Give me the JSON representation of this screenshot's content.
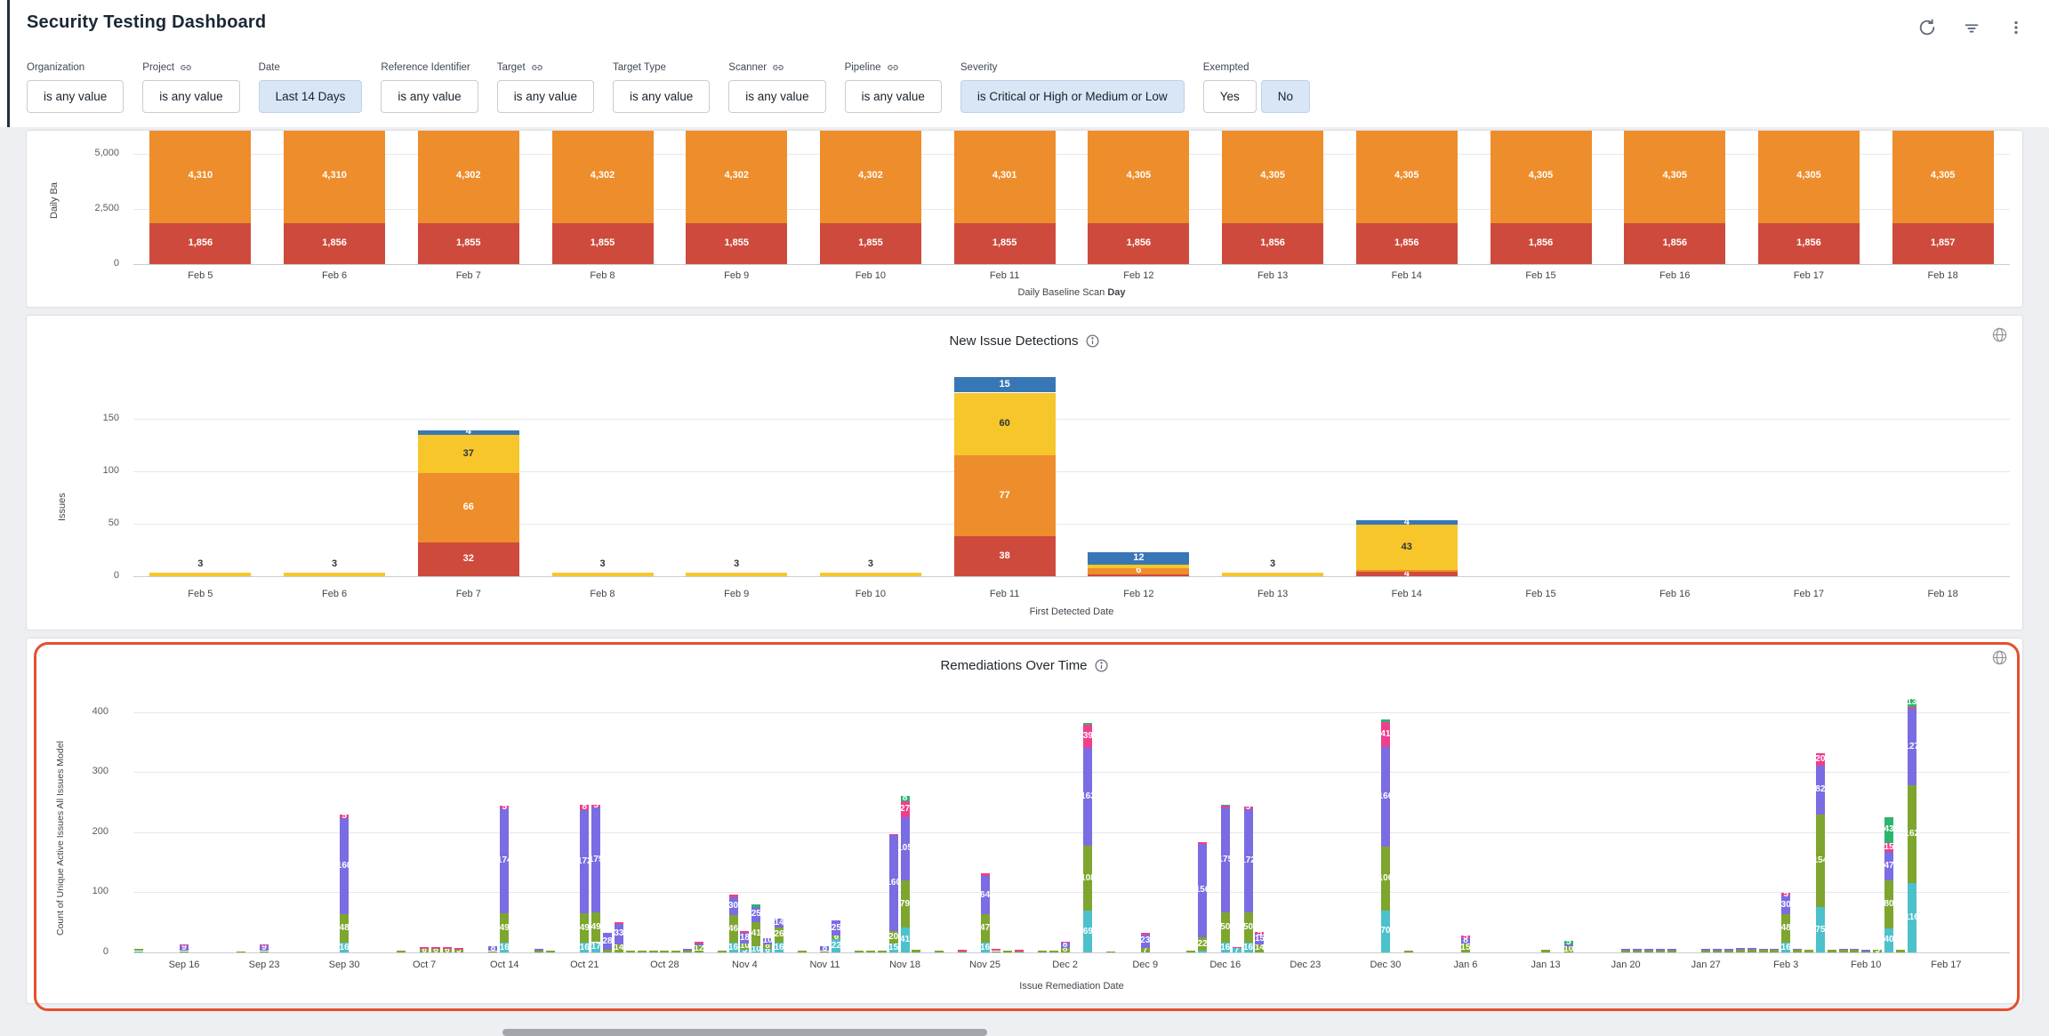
{
  "header": {
    "title": "Security Testing Dashboard",
    "icons": [
      "refresh-icon",
      "filter-icon",
      "kebab-menu-icon"
    ]
  },
  "filters": [
    {
      "label": "Organization",
      "linked": false,
      "chips": [
        {
          "text": "is any value",
          "active": false
        }
      ]
    },
    {
      "label": "Project",
      "linked": true,
      "chips": [
        {
          "text": "is any value",
          "active": false
        }
      ]
    },
    {
      "label": "Date",
      "linked": false,
      "chips": [
        {
          "text": "Last 14 Days",
          "active": true
        }
      ]
    },
    {
      "label": "Reference Identifier",
      "linked": false,
      "chips": [
        {
          "text": "is any value",
          "active": false
        }
      ]
    },
    {
      "label": "Target",
      "linked": true,
      "chips": [
        {
          "text": "is any value",
          "active": false
        }
      ]
    },
    {
      "label": "Target Type",
      "linked": false,
      "chips": [
        {
          "text": "is any value",
          "active": false
        }
      ]
    },
    {
      "label": "Scanner",
      "linked": true,
      "chips": [
        {
          "text": "is any value",
          "active": false
        }
      ]
    },
    {
      "label": "Pipeline",
      "linked": true,
      "chips": [
        {
          "text": "is any value",
          "active": false
        }
      ]
    },
    {
      "label": "Severity",
      "linked": false,
      "chips": [
        {
          "text": "is Critical or High or Medium or Low",
          "active": true
        }
      ]
    },
    {
      "label": "Exempted",
      "linked": false,
      "chips": [
        {
          "text": "Yes",
          "active": false
        },
        {
          "text": "No",
          "active": true
        }
      ]
    }
  ],
  "severity_palette": {
    "critical": "#ce4a3c",
    "high": "#ee8d2b",
    "medium": "#f6c62b",
    "low": "#3877b5"
  },
  "chart_data": [
    {
      "type": "bar",
      "stacked": true,
      "title": "",
      "ylabel": "Daily Ba",
      "yticks": [
        {
          "v": 5000,
          "label": "5,000"
        },
        {
          "v": 2500,
          "label": "2,500"
        },
        {
          "v": 0,
          "label": "0"
        }
      ],
      "xlabel": "Daily Baseline Scan",
      "xlabel_bold": "Day",
      "categories": [
        "Feb 5",
        "Feb 6",
        "Feb 7",
        "Feb 8",
        "Feb 9",
        "Feb 10",
        "Feb 11",
        "Feb 12",
        "Feb 13",
        "Feb 14",
        "Feb 15",
        "Feb 16",
        "Feb 17",
        "Feb 18"
      ],
      "series": [
        {
          "name": "high",
          "color": "#ee8d2b",
          "values": [
            4310,
            4310,
            4302,
            4302,
            4302,
            4302,
            4301,
            4305,
            4305,
            4305,
            4305,
            4305,
            4305,
            4305
          ],
          "labels": [
            "4,310",
            "4,310",
            "4,302",
            "4,302",
            "4,302",
            "4,302",
            "4,301",
            "4,305",
            "4,305",
            "4,305",
            "4,305",
            "4,305",
            "4,305",
            "4,305"
          ]
        },
        {
          "name": "critical",
          "color": "#ce4a3c",
          "values": [
            1856,
            1856,
            1855,
            1855,
            1855,
            1855,
            1855,
            1856,
            1856,
            1856,
            1856,
            1856,
            1856,
            1857
          ],
          "labels": [
            "1,856",
            "1,856",
            "1,855",
            "1,855",
            "1,855",
            "1,855",
            "1,855",
            "1,856",
            "1,856",
            "1,856",
            "1,856",
            "1,856",
            "1,856",
            "1,857"
          ]
        }
      ]
    },
    {
      "type": "bar",
      "stacked": true,
      "title": "New Issue Detections",
      "ylabel": "Issues",
      "xlabel": "First Detected Date",
      "yticks": [
        {
          "v": 0,
          "label": "0"
        },
        {
          "v": 50,
          "label": "50"
        },
        {
          "v": 100,
          "label": "100"
        },
        {
          "v": 150,
          "label": "150"
        }
      ],
      "categories": [
        "Feb 5",
        "Feb 6",
        "Feb 7",
        "Feb 8",
        "Feb 9",
        "Feb 10",
        "Feb 11",
        "Feb 12",
        "Feb 13",
        "Feb 14",
        "Feb 15",
        "Feb 16",
        "Feb 17",
        "Feb 18"
      ],
      "stacks": [
        [
          [
            "medium",
            3
          ]
        ],
        [
          [
            "medium",
            3
          ]
        ],
        [
          [
            "critical",
            32
          ],
          [
            "high",
            66
          ],
          [
            "medium",
            37
          ],
          [
            "low",
            4
          ]
        ],
        [
          [
            "medium",
            3
          ]
        ],
        [
          [
            "medium",
            3
          ]
        ],
        [
          [
            "medium",
            3
          ]
        ],
        [
          [
            "critical",
            38
          ],
          [
            "high",
            77
          ],
          [
            "medium",
            60
          ],
          [
            "low",
            15
          ]
        ],
        [
          [
            "critical",
            2
          ],
          [
            "high",
            6
          ],
          [
            "medium",
            3
          ],
          [
            "low",
            12
          ]
        ],
        [
          [
            "medium",
            3
          ]
        ],
        [
          [
            "critical",
            4
          ],
          [
            "high",
            2
          ],
          [
            "medium",
            43
          ],
          [
            "low",
            4
          ]
        ],
        [],
        [],
        [],
        []
      ]
    },
    {
      "type": "bar",
      "stacked": true,
      "title": "Remediations Over Time",
      "ylabel": "Count of Unique Active Issues All Issues Model",
      "xlabel": "Issue Remediation Date",
      "yticks": [
        {
          "v": 0,
          "label": "0"
        },
        {
          "v": 100,
          "label": "100"
        },
        {
          "v": 200,
          "label": "200"
        },
        {
          "v": 300,
          "label": "300"
        },
        {
          "v": 400,
          "label": "400"
        }
      ],
      "week_ticks": [
        "Sep 16",
        "Sep 23",
        "Sep 30",
        "Oct 7",
        "Oct 14",
        "Oct 21",
        "Oct 28",
        "Nov 4",
        "Nov 11",
        "Nov 18",
        "Nov 25",
        "Dec 2",
        "Dec 9",
        "Dec 16",
        "Dec 23",
        "Dec 30",
        "Jan 6",
        "Jan 13",
        "Jan 20",
        "Jan 27",
        "Feb 3",
        "Feb 10",
        "Feb 17"
      ],
      "first_tick_day": 7,
      "tick_step_days": 7,
      "palette": {
        "teal": "#4cc1cb",
        "green": "#7ea62f",
        "purple": "#7a6ce2",
        "pink": "#ee3f8c",
        "emerald": "#2bb56f"
      },
      "bar_format": [
        "day_index",
        "teal",
        "green",
        "purple",
        "pink",
        "emerald"
      ],
      "bars": [
        [
          3,
          1,
          3,
          0,
          0,
          0
        ],
        [
          7,
          0,
          2,
          9,
          2,
          0
        ],
        [
          12,
          0,
          2,
          0,
          0,
          0
        ],
        [
          14,
          0,
          1,
          9,
          2,
          0
        ],
        [
          21,
          16,
          48,
          160,
          5,
          0
        ],
        [
          26,
          0,
          3,
          0,
          0,
          0
        ],
        [
          28,
          0,
          6,
          0,
          2,
          0
        ],
        [
          29,
          0,
          6,
          0,
          2,
          0
        ],
        [
          30,
          0,
          6,
          0,
          2,
          0
        ],
        [
          31,
          0,
          5,
          0,
          2,
          0
        ],
        [
          34,
          0,
          2,
          8,
          0,
          0
        ],
        [
          35,
          16,
          49,
          174,
          5,
          0
        ],
        [
          38,
          0,
          3,
          2,
          0,
          0
        ],
        [
          39,
          0,
          3,
          0,
          0,
          0
        ],
        [
          42,
          16,
          49,
          172,
          8,
          0
        ],
        [
          43,
          17,
          49,
          175,
          5,
          0
        ],
        [
          44,
          0,
          4,
          28,
          0,
          0
        ],
        [
          45,
          0,
          14,
          33,
          3,
          0
        ],
        [
          46,
          0,
          3,
          0,
          0,
          0
        ],
        [
          47,
          0,
          3,
          0,
          0,
          0
        ],
        [
          48,
          0,
          3,
          0,
          0,
          0
        ],
        [
          49,
          0,
          3,
          0,
          0,
          0
        ],
        [
          50,
          0,
          3,
          0,
          0,
          0
        ],
        [
          51,
          0,
          3,
          2,
          0,
          0
        ],
        [
          52,
          0,
          12,
          2,
          3,
          0
        ],
        [
          54,
          0,
          3,
          0,
          0,
          0
        ],
        [
          55,
          16,
          46,
          30,
          4,
          0
        ],
        [
          56,
          5,
          10,
          18,
          3,
          0
        ],
        [
          57,
          10,
          41,
          25,
          0,
          4
        ],
        [
          58,
          6,
          8,
          10,
          0,
          0
        ],
        [
          59,
          16,
          26,
          14,
          0,
          0
        ],
        [
          61,
          0,
          3,
          0,
          0,
          0
        ],
        [
          63,
          0,
          2,
          8,
          0,
          0
        ],
        [
          64,
          22,
          6,
          25,
          0,
          0
        ],
        [
          66,
          0,
          3,
          0,
          0,
          0
        ],
        [
          67,
          0,
          3,
          0,
          0,
          0
        ],
        [
          68,
          0,
          3,
          0,
          0,
          0
        ],
        [
          69,
          15,
          20,
          160,
          2,
          0
        ],
        [
          70,
          41,
          79,
          105,
          27,
          8
        ],
        [
          71,
          0,
          4,
          0,
          0,
          0
        ],
        [
          73,
          0,
          3,
          0,
          0,
          0
        ],
        [
          75,
          0,
          2,
          0,
          2,
          0
        ],
        [
          77,
          16,
          47,
          64,
          4,
          0
        ],
        [
          78,
          0,
          2,
          0,
          3,
          0
        ],
        [
          79,
          0,
          3,
          0,
          0,
          0
        ],
        [
          80,
          0,
          2,
          0,
          2,
          0
        ],
        [
          82,
          0,
          3,
          0,
          0,
          0
        ],
        [
          83,
          0,
          3,
          0,
          0,
          0
        ],
        [
          84,
          0,
          8,
          8,
          2,
          0
        ],
        [
          86,
          69,
          108,
          163,
          39,
          2
        ],
        [
          88,
          0,
          2,
          0,
          0,
          0
        ],
        [
          91,
          0,
          7,
          23,
          2,
          0
        ],
        [
          95,
          0,
          3,
          0,
          0,
          0
        ],
        [
          96,
          3,
          22,
          156,
          2,
          0
        ],
        [
          98,
          16,
          50,
          175,
          3,
          2
        ],
        [
          99,
          7,
          0,
          0,
          2,
          0
        ],
        [
          100,
          16,
          50,
          172,
          5,
          0
        ],
        [
          101,
          0,
          14,
          15,
          5,
          0
        ],
        [
          112,
          70,
          106,
          166,
          41,
          4
        ],
        [
          114,
          0,
          3,
          0,
          0,
          0
        ],
        [
          119,
          0,
          15,
          8,
          5,
          0
        ],
        [
          126,
          0,
          4,
          0,
          0,
          0
        ],
        [
          128,
          0,
          10,
          4,
          0,
          5
        ],
        [
          133,
          0,
          3,
          3,
          0,
          0
        ],
        [
          134,
          0,
          3,
          3,
          0,
          0
        ],
        [
          135,
          0,
          3,
          3,
          0,
          0
        ],
        [
          136,
          0,
          3,
          3,
          0,
          0
        ],
        [
          137,
          0,
          3,
          3,
          0,
          0
        ],
        [
          140,
          0,
          3,
          3,
          0,
          0
        ],
        [
          141,
          0,
          3,
          3,
          0,
          0
        ],
        [
          142,
          0,
          3,
          3,
          0,
          0
        ],
        [
          143,
          0,
          4,
          3,
          0,
          0
        ],
        [
          144,
          0,
          4,
          4,
          0,
          0
        ],
        [
          145,
          0,
          4,
          2,
          0,
          0
        ],
        [
          146,
          0,
          4,
          2,
          0,
          0
        ],
        [
          147,
          16,
          48,
          30,
          5,
          0
        ],
        [
          148,
          0,
          4,
          2,
          0,
          0
        ],
        [
          149,
          0,
          4,
          0,
          0,
          0
        ],
        [
          150,
          75,
          154,
          82,
          20,
          0
        ],
        [
          151,
          0,
          4,
          0,
          0,
          0
        ],
        [
          152,
          0,
          4,
          2,
          0,
          0
        ],
        [
          153,
          0,
          4,
          2,
          0,
          0
        ],
        [
          154,
          0,
          2,
          2,
          0,
          0
        ],
        [
          155,
          0,
          5,
          0,
          0,
          0
        ],
        [
          156,
          40,
          80,
          47,
          15,
          43
        ],
        [
          157,
          0,
          4,
          0,
          0,
          0
        ],
        [
          158,
          116,
          162,
          127,
          4,
          13
        ]
      ]
    }
  ],
  "annotation": {
    "highlight_color": "#e4502e"
  }
}
